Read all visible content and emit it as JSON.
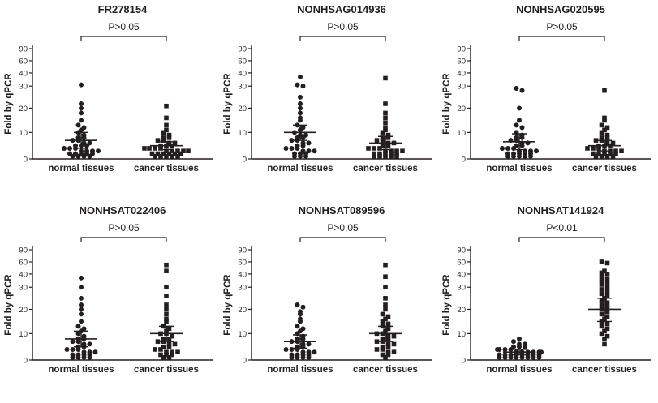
{
  "figure": {
    "ylabel": "Fold by qPCR",
    "y_ticks": [
      0,
      10,
      20,
      30,
      40,
      60,
      90
    ],
    "marker_color": "#231f20",
    "background": "#ffffff"
  },
  "chart_data": [
    {
      "type": "scatter",
      "title": "FR278154",
      "p_label": "P>0.05",
      "ylabel": "Fold by qPCR",
      "categories": [
        "normal tissues",
        "cancer tissues"
      ],
      "ylim": [
        0,
        90
      ],
      "y_ticks": [
        0,
        10,
        20,
        30,
        40,
        60,
        90
      ],
      "series": [
        {
          "name": "normal tissues",
          "marker": "circle",
          "mean": 7,
          "sem": 3,
          "values": [
            31,
            22,
            20,
            18,
            15,
            13,
            12,
            11,
            10,
            9,
            8,
            8,
            7,
            7,
            6,
            6,
            5,
            5,
            5,
            4,
            4,
            4,
            3,
            3,
            3,
            3,
            2,
            2,
            2,
            2,
            2,
            1,
            1,
            1,
            1
          ]
        },
        {
          "name": "cancer tissues",
          "marker": "square",
          "mean": 5,
          "sem": 1.5,
          "values": [
            21,
            16,
            13,
            11,
            10,
            9,
            8,
            8,
            7,
            7,
            6,
            6,
            5,
            5,
            5,
            4,
            4,
            4,
            4,
            3,
            3,
            3,
            3,
            3,
            2,
            2,
            2,
            2,
            2,
            2,
            1,
            1,
            1,
            1,
            1
          ]
        }
      ]
    },
    {
      "type": "scatter",
      "title": "NONHSAG014936",
      "p_label": "P>0.05",
      "ylabel": "Fold by qPCR",
      "categories": [
        "normal tissues",
        "cancer tissues"
      ],
      "ylim": [
        0,
        90
      ],
      "y_ticks": [
        0,
        10,
        20,
        30,
        40,
        60,
        90
      ],
      "series": [
        {
          "name": "normal tissues",
          "marker": "circle",
          "mean": 10,
          "sem": 3,
          "values": [
            37,
            31,
            30,
            25,
            22,
            20,
            18,
            16,
            15,
            13,
            12,
            11,
            10,
            9,
            9,
            8,
            8,
            7,
            7,
            6,
            6,
            5,
            5,
            4,
            4,
            4,
            3,
            3,
            3,
            2,
            2,
            2,
            1,
            1,
            1
          ]
        },
        {
          "name": "cancer tissues",
          "marker": "square",
          "mean": 6,
          "sem": 2.5,
          "values": [
            36,
            22,
            18,
            16,
            14,
            12,
            11,
            10,
            9,
            8,
            8,
            7,
            7,
            6,
            6,
            5,
            5,
            4,
            4,
            4,
            3,
            3,
            3,
            3,
            2,
            2,
            2,
            2,
            2,
            1,
            1,
            1,
            1,
            1
          ]
        }
      ]
    },
    {
      "type": "scatter",
      "title": "NONHSAG020595",
      "p_label": "P>0.05",
      "ylabel": "Fold by qPCR",
      "categories": [
        "normal tissues",
        "cancer tissues"
      ],
      "ylim": [
        0,
        90
      ],
      "y_ticks": [
        0,
        10,
        20,
        30,
        40,
        60,
        90
      ],
      "series": [
        {
          "name": "normal tissues",
          "marker": "circle",
          "mean": 6.5,
          "sem": 3,
          "values": [
            29,
            28,
            20,
            15,
            13,
            12,
            10,
            9,
            8,
            8,
            7,
            7,
            6,
            6,
            5,
            5,
            4,
            4,
            4,
            3,
            3,
            3,
            3,
            2,
            2,
            2,
            2,
            2,
            1,
            1,
            1,
            1,
            1
          ]
        },
        {
          "name": "cancer tissues",
          "marker": "square",
          "mean": 5,
          "sem": 2,
          "values": [
            28,
            16,
            15,
            13,
            12,
            11,
            10,
            9,
            8,
            8,
            7,
            7,
            6,
            6,
            5,
            5,
            5,
            4,
            4,
            4,
            3,
            3,
            3,
            3,
            2,
            2,
            2,
            2,
            2,
            1,
            1,
            1,
            1
          ]
        }
      ]
    },
    {
      "type": "scatter",
      "title": "NONHSAT022406",
      "p_label": "P>0.05",
      "ylabel": "Fold by qPCR",
      "categories": [
        "normal tissues",
        "cancer tissues"
      ],
      "ylim": [
        0,
        90
      ],
      "y_ticks": [
        0,
        10,
        20,
        30,
        40,
        60,
        90
      ],
      "series": [
        {
          "name": "normal tissues",
          "marker": "circle",
          "mean": 8,
          "sem": 3,
          "values": [
            37,
            30,
            25,
            22,
            20,
            18,
            15,
            13,
            12,
            11,
            10,
            9,
            8,
            8,
            7,
            7,
            6,
            6,
            5,
            5,
            4,
            4,
            4,
            3,
            3,
            3,
            2,
            2,
            2,
            2,
            1,
            1,
            1,
            1
          ]
        },
        {
          "name": "cancer tissues",
          "marker": "square",
          "mean": 10,
          "sem": 3,
          "values": [
            55,
            45,
            30,
            26,
            22,
            20,
            18,
            16,
            15,
            13,
            12,
            11,
            10,
            10,
            9,
            8,
            8,
            7,
            7,
            6,
            6,
            5,
            5,
            4,
            4,
            3,
            3,
            3,
            2,
            2,
            2,
            1,
            1
          ]
        }
      ]
    },
    {
      "type": "scatter",
      "title": "NONHSAT089596",
      "p_label": "P>0.05",
      "ylabel": "Fold by qPCR",
      "categories": [
        "normal tissues",
        "cancer tissues"
      ],
      "ylim": [
        0,
        90
      ],
      "y_ticks": [
        0,
        10,
        20,
        30,
        40,
        60,
        90
      ],
      "series": [
        {
          "name": "normal tissues",
          "marker": "circle",
          "mean": 7,
          "sem": 2.5,
          "values": [
            22,
            21,
            19,
            18,
            16,
            15,
            13,
            12,
            11,
            10,
            9,
            8,
            8,
            7,
            7,
            6,
            6,
            5,
            5,
            4,
            4,
            4,
            3,
            3,
            3,
            2,
            2,
            2,
            2,
            1,
            1,
            1,
            1
          ]
        },
        {
          "name": "cancer tissues",
          "marker": "square",
          "mean": 10,
          "sem": 3,
          "values": [
            55,
            38,
            30,
            25,
            22,
            20,
            18,
            17,
            16,
            15,
            14,
            13,
            12,
            11,
            10,
            10,
            9,
            9,
            8,
            8,
            7,
            7,
            6,
            6,
            5,
            5,
            4,
            4,
            3,
            3,
            2,
            2,
            1
          ]
        }
      ]
    },
    {
      "type": "scatter",
      "title": "NONHSAT141924",
      "p_label": "P<0.01",
      "ylabel": "Fold by qPCR",
      "categories": [
        "normal tissues",
        "cancer tissues"
      ],
      "ylim": [
        0,
        90
      ],
      "y_ticks": [
        0,
        10,
        20,
        30,
        40,
        60,
        90
      ],
      "series": [
        {
          "name": "normal tissues",
          "marker": "circle",
          "mean": 3,
          "sem": 1,
          "values": [
            8,
            7,
            6,
            6,
            5,
            5,
            5,
            4,
            4,
            4,
            4,
            3,
            3,
            3,
            3,
            3,
            3,
            2,
            2,
            2,
            2,
            2,
            2,
            2,
            2,
            1,
            1,
            1,
            1,
            1,
            1,
            1,
            1
          ]
        },
        {
          "name": "cancer tissues",
          "marker": "square",
          "mean": 20,
          "sem": 5,
          "values": [
            60,
            58,
            45,
            42,
            40,
            38,
            36,
            35,
            33,
            32,
            30,
            29,
            28,
            27,
            26,
            25,
            24,
            23,
            22,
            21,
            20,
            19,
            18,
            17,
            16,
            15,
            14,
            13,
            12,
            11,
            10,
            9,
            8,
            6
          ]
        }
      ]
    }
  ]
}
